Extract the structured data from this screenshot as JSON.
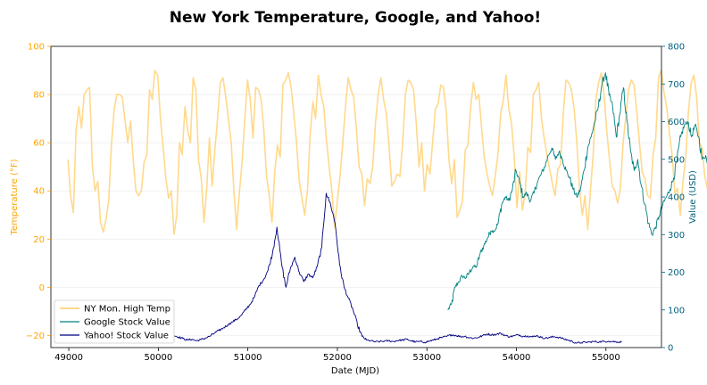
{
  "chart_data": {
    "type": "line",
    "title": "New York Temperature, Google, and Yahoo!",
    "xlabel": "Date (MJD)",
    "ylabel_left": "Temperature (°F)",
    "ylabel_right": "Value (USD)",
    "xlim": [
      48800,
      55620
    ],
    "ylim_left": [
      -25,
      100
    ],
    "ylim_right": [
      0,
      800
    ],
    "x_ticks": [
      49000,
      50000,
      51000,
      52000,
      53000,
      54000,
      55000
    ],
    "y_ticks_left": [
      -20,
      0,
      20,
      40,
      60,
      80,
      100
    ],
    "y_ticks_right": [
      0,
      100,
      200,
      300,
      400,
      500,
      600,
      700,
      800
    ],
    "grid": "horizontal, faint",
    "legend_position": "lower-left",
    "colors": {
      "temp": "#ffcc66",
      "google": "#008080",
      "yahoo": "#000080",
      "left_axis": "#ffa500",
      "right_axis": "#006080"
    },
    "series": [
      {
        "name": "NY Mon. High Temp",
        "axis": "left",
        "x_start": 48990,
        "x_step": 30.4,
        "values": [
          53,
          38,
          31,
          65,
          75,
          66,
          80,
          82,
          83,
          50,
          40,
          44,
          27,
          23,
          28,
          36,
          59,
          74,
          80,
          80,
          79,
          69,
          60,
          69,
          53,
          40,
          38,
          40,
          52,
          55,
          82,
          78,
          90,
          88,
          70,
          58,
          45,
          37,
          40,
          22,
          30,
          60,
          55,
          75,
          65,
          60,
          87,
          82,
          53,
          45,
          27,
          41,
          62,
          42,
          57,
          70,
          85,
          87,
          79,
          70,
          60,
          40,
          24,
          39,
          52,
          70,
          86,
          78,
          62,
          83,
          82,
          78,
          65,
          46,
          38,
          27,
          48,
          59,
          54,
          84,
          86,
          89,
          83,
          72,
          60,
          44,
          37,
          30,
          40,
          63,
          77,
          70,
          88,
          80,
          75,
          61,
          50,
          40,
          25,
          36,
          46,
          60,
          75,
          87,
          82,
          79,
          66,
          50,
          47,
          34,
          45,
          43,
          50,
          68,
          80,
          87,
          78,
          72,
          59,
          42,
          44,
          47,
          46,
          60,
          80,
          86,
          85,
          82,
          68,
          50,
          60,
          40,
          51,
          47,
          60,
          74,
          76,
          84,
          83,
          73,
          53,
          43,
          53,
          29,
          32,
          36,
          57,
          59,
          75,
          85,
          78,
          80,
          66,
          54,
          47,
          42,
          38,
          46,
          55,
          72,
          78,
          88,
          74,
          68,
          54,
          33,
          48,
          32,
          39,
          58,
          56,
          80,
          82,
          85,
          70,
          62,
          55,
          49,
          43,
          38,
          49,
          51,
          72,
          86,
          85,
          82,
          74,
          60,
          40,
          30,
          38,
          24,
          40,
          55,
          78,
          85,
          89,
          80,
          65,
          53,
          42,
          40,
          35,
          41,
          60,
          71,
          82,
          86,
          84,
          73,
          60,
          48,
          45,
          38,
          37,
          55,
          62,
          87,
          90,
          81,
          75,
          64,
          55,
          39,
          41,
          30,
          44,
          54,
          73,
          85,
          88,
          79,
          60,
          58,
          46,
          41,
          33,
          44,
          55,
          70,
          84,
          88,
          84,
          73,
          62,
          48,
          40,
          39,
          43,
          60,
          67,
          78,
          84,
          82,
          78,
          63,
          50,
          40,
          36,
          37,
          44,
          52,
          67,
          83,
          81,
          75,
          72,
          60,
          48,
          38,
          37,
          39,
          50,
          70,
          80,
          88,
          90
        ]
      },
      {
        "name": "Google Stock Value",
        "axis": "right",
        "x_start": 53235,
        "x_step": 40,
        "values": [
          100,
          115,
          160,
          175,
          190,
          185,
          200,
          215,
          215,
          250,
          270,
          290,
          310,
          310,
          330,
          380,
          400,
          390,
          420,
          470,
          440,
          400,
          410,
          390,
          410,
          440,
          460,
          480,
          510,
          530,
          500,
          520,
          500,
          470,
          450,
          420,
          400,
          420,
          470,
          530,
          560,
          600,
          640,
          700,
          730,
          670,
          640,
          560,
          620,
          690,
          600,
          520,
          470,
          500,
          430,
          380,
          330,
          300,
          320,
          350,
          380,
          400,
          420,
          450,
          500,
          560,
          590,
          600,
          560,
          590,
          560,
          500,
          510,
          450,
          480,
          490,
          490,
          520,
          510
        ]
      },
      {
        "name": "Yahoo! Stock Value",
        "axis": "right",
        "x_start": 50175,
        "x_step": 50,
        "values": [
          32,
          28,
          24,
          20,
          22,
          18,
          21,
          25,
          30,
          38,
          45,
          52,
          60,
          68,
          75,
          85,
          100,
          115,
          135,
          165,
          180,
          205,
          250,
          320,
          225,
          160,
          210,
          240,
          200,
          175,
          195,
          185,
          215,
          265,
          410,
          380,
          330,
          220,
          160,
          130,
          100,
          60,
          30,
          20,
          18,
          15,
          16,
          17,
          18,
          16,
          19,
          20,
          22,
          18,
          15,
          16,
          14,
          17,
          20,
          24,
          27,
          30,
          34,
          32,
          29,
          30,
          26,
          25,
          27,
          32,
          36,
          34,
          35,
          38,
          32,
          29,
          31,
          34,
          30,
          31,
          28,
          32,
          27,
          25,
          27,
          29,
          27,
          23,
          20,
          16,
          12,
          13,
          14,
          15,
          16,
          15,
          16,
          17,
          16,
          15,
          15
        ]
      }
    ]
  }
}
